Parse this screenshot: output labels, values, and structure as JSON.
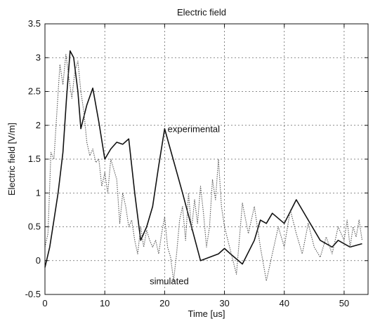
{
  "chart_data": {
    "type": "line",
    "title": "Electric field",
    "xlabel": "Time [us]",
    "ylabel": "Electric field [V/m]",
    "xlim": [
      0,
      54
    ],
    "ylim": [
      -0.5,
      3.5
    ],
    "xticks": [
      0,
      10,
      20,
      30,
      40,
      50
    ],
    "yticks": [
      -0.5,
      0,
      0.5,
      1,
      1.5,
      2,
      2.5,
      3,
      3.5
    ],
    "xtick_labels": [
      "0",
      "10",
      "20",
      "30",
      "40",
      "50"
    ],
    "ytick_labels": [
      "-0.5",
      "0",
      "0.5",
      "1",
      "1.5",
      "2",
      "2.5",
      "3",
      "3.5"
    ],
    "grid": true,
    "annotations": [
      {
        "text": "experimental",
        "x": 20.5,
        "y": 1.9
      },
      {
        "text": "simulated",
        "x": 17.5,
        "y": -0.35
      }
    ],
    "series": [
      {
        "name": "experimental",
        "style": "solid",
        "color": "#111111",
        "x": [
          0,
          0.8,
          1.5,
          2.2,
          3.0,
          3.6,
          4.2,
          4.8,
          5.5,
          6.0,
          7.0,
          8.0,
          9.0,
          10.0,
          11.0,
          12.0,
          13.0,
          14.0,
          15.0,
          16.0,
          17.0,
          18.0,
          19.0,
          20.0,
          23.0,
          26.0,
          29.0,
          30.0,
          31.0,
          33.0,
          35.0,
          36.0,
          37.0,
          38.0,
          40.0,
          42.0,
          44.0,
          46.0,
          48.0,
          49.0,
          51.0,
          53.0
        ],
        "y": [
          -0.1,
          0.2,
          0.6,
          1.0,
          1.6,
          2.4,
          3.1,
          3.0,
          2.5,
          1.95,
          2.3,
          2.55,
          2.05,
          1.5,
          1.65,
          1.75,
          1.72,
          1.8,
          1.0,
          0.3,
          0.5,
          0.8,
          1.4,
          1.95,
          1.0,
          0.0,
          0.1,
          0.18,
          0.1,
          -0.05,
          0.3,
          0.6,
          0.55,
          0.7,
          0.55,
          0.9,
          0.6,
          0.3,
          0.2,
          0.3,
          0.2,
          0.25
        ]
      },
      {
        "name": "simulated",
        "style": "dotted",
        "color": "#555555",
        "x": [
          0,
          0.5,
          1.0,
          1.5,
          2.0,
          2.5,
          3.0,
          3.5,
          4.0,
          4.5,
          5.0,
          5.5,
          6.0,
          6.5,
          7.0,
          7.5,
          8.0,
          8.5,
          9.0,
          9.5,
          10.0,
          10.5,
          11.0,
          11.5,
          12.0,
          12.5,
          13.0,
          13.5,
          14.0,
          14.5,
          15.0,
          15.5,
          16.0,
          16.5,
          17.0,
          17.5,
          18.0,
          18.5,
          19.0,
          19.5,
          20.0,
          20.5,
          21.0,
          21.5,
          22.0,
          22.5,
          23.0,
          23.5,
          24.0,
          24.5,
          25.0,
          25.5,
          26.0,
          26.5,
          27.0,
          27.5,
          28.0,
          28.5,
          29.0,
          29.5,
          30.0,
          31.0,
          32.0,
          33.0,
          34.0,
          35.0,
          36.0,
          37.0,
          38.0,
          39.0,
          40.0,
          41.0,
          42.0,
          43.0,
          44.0,
          45.0,
          46.0,
          47.0,
          48.0,
          49.0,
          50.0,
          50.5,
          51.0,
          51.5,
          52.0,
          52.5,
          53.0
        ],
        "y": [
          0.2,
          0.4,
          1.6,
          1.5,
          2.2,
          2.9,
          2.6,
          3.05,
          2.7,
          2.4,
          2.8,
          2.95,
          2.5,
          2.2,
          1.75,
          1.55,
          1.65,
          1.45,
          1.5,
          1.1,
          1.3,
          1.0,
          1.5,
          1.35,
          1.2,
          0.55,
          1.0,
          0.8,
          0.5,
          0.6,
          0.3,
          0.1,
          0.5,
          0.2,
          0.45,
          0.3,
          0.2,
          0.3,
          0.1,
          0.4,
          0.65,
          0.2,
          0.05,
          -0.3,
          0.1,
          0.6,
          0.8,
          0.3,
          1.0,
          0.45,
          0.9,
          0.55,
          1.1,
          0.7,
          0.2,
          0.5,
          1.2,
          0.9,
          1.5,
          0.8,
          0.5,
          0.15,
          -0.2,
          0.85,
          0.4,
          0.8,
          0.2,
          -0.3,
          0.1,
          0.5,
          0.2,
          0.75,
          0.4,
          0.1,
          0.55,
          0.2,
          0.05,
          0.35,
          0.1,
          0.5,
          0.3,
          0.6,
          0.2,
          0.5,
          0.35,
          0.6,
          0.3
        ]
      }
    ]
  }
}
